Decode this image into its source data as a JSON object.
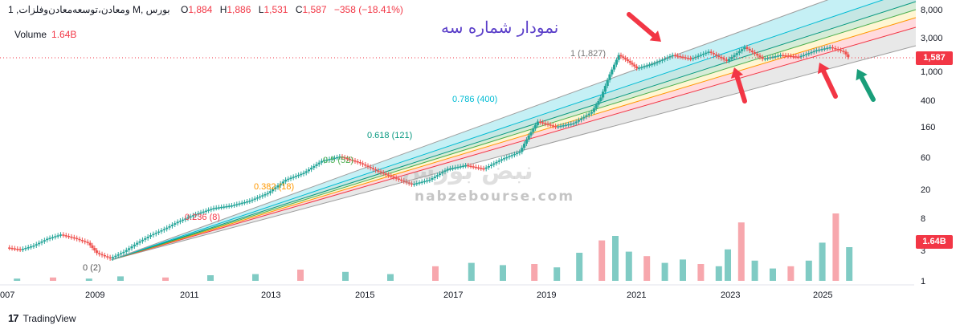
{
  "header": {
    "symbol": "1 ,ومعادن،توسعه‌معادن‌وفلزات M, بورس",
    "open_label": "O",
    "open": "1,884",
    "high_label": "H",
    "high": "1,886",
    "low_label": "L",
    "low": "1,531",
    "close_label": "C",
    "close": "1,587",
    "change": "−358 (−18.41%)"
  },
  "volume": {
    "label": "Volume",
    "value": "1.64B"
  },
  "title_fa": "نمودار شماره سه",
  "watermark": {
    "main": "نبض بورس",
    "url": "nabzebourse.com"
  },
  "badges": {
    "price": "1,587",
    "volume": "1.64B"
  },
  "footer": {
    "brand": "TradingView",
    "logo": "17"
  },
  "colors": {
    "up": "#26a69a",
    "down": "#ef5350",
    "fan_top": "#d8d8d8",
    "fan_cyan": "#b2ebf2",
    "fan_teal": "#b2dfdb",
    "fan_green": "#c8e6c9",
    "fan_yellow": "#fff3c4",
    "fan_red": "#ffcdd2",
    "fan_gray": "#e0e0e0",
    "arrow_red": "#f23645",
    "arrow_green": "#1a9e7a"
  },
  "chart_data": {
    "type": "candlestick-with-fib-fan",
    "y_scale": "log",
    "x_ticks": [
      "007",
      "2009",
      "2011",
      "2013",
      "2015",
      "2017",
      "2019",
      "2021",
      "2023",
      "2025"
    ],
    "y_ticks": [
      "8,000",
      "3,000",
      "1,000",
      "400",
      "160",
      "60",
      "20",
      "8",
      "3",
      "1"
    ],
    "last_price": 1587,
    "fib_levels": [
      {
        "label": "0 (2)",
        "value": 2
      },
      {
        "label": "0.236 (8)",
        "value": 8
      },
      {
        "label": "0.382 (18)",
        "value": 18
      },
      {
        "label": "0.5 (52)",
        "value": 52
      },
      {
        "label": "0.618 (121)",
        "value": 121
      },
      {
        "label": "0.786 (400)",
        "value": 400
      },
      {
        "label": "1 (1,827)",
        "value": 1827
      }
    ],
    "price_path": [
      [
        2007.0,
        3
      ],
      [
        2007.3,
        2.8
      ],
      [
        2007.6,
        3.2
      ],
      [
        2007.9,
        4
      ],
      [
        2008.2,
        4.6
      ],
      [
        2008.5,
        4.1
      ],
      [
        2008.8,
        3.5
      ],
      [
        2009.0,
        2.5
      ],
      [
        2009.3,
        2.1
      ],
      [
        2009.6,
        2.6
      ],
      [
        2009.9,
        3.5
      ],
      [
        2010.2,
        4.5
      ],
      [
        2010.5,
        5.5
      ],
      [
        2010.8,
        7
      ],
      [
        2011.2,
        9
      ],
      [
        2011.6,
        11
      ],
      [
        2012.0,
        12
      ],
      [
        2012.4,
        14
      ],
      [
        2012.8,
        18
      ],
      [
        2013.2,
        28
      ],
      [
        2013.6,
        35
      ],
      [
        2014.0,
        52
      ],
      [
        2014.4,
        60
      ],
      [
        2014.8,
        50
      ],
      [
        2015.2,
        38
      ],
      [
        2015.6,
        30
      ],
      [
        2016.0,
        24
      ],
      [
        2016.4,
        28
      ],
      [
        2016.8,
        40
      ],
      [
        2017.2,
        45
      ],
      [
        2017.6,
        40
      ],
      [
        2018.0,
        55
      ],
      [
        2018.4,
        70
      ],
      [
        2018.6,
        120
      ],
      [
        2018.8,
        190
      ],
      [
        2019.2,
        160
      ],
      [
        2019.6,
        180
      ],
      [
        2020.0,
        260
      ],
      [
        2020.2,
        420
      ],
      [
        2020.4,
        900
      ],
      [
        2020.6,
        1700
      ],
      [
        2020.8,
        1400
      ],
      [
        2021.0,
        1100
      ],
      [
        2021.4,
        1300
      ],
      [
        2021.8,
        1700
      ],
      [
        2022.2,
        1500
      ],
      [
        2022.6,
        1900
      ],
      [
        2023.0,
        1400
      ],
      [
        2023.4,
        2200
      ],
      [
        2023.8,
        1500
      ],
      [
        2024.2,
        1700
      ],
      [
        2024.6,
        1600
      ],
      [
        2025.0,
        2000
      ],
      [
        2025.3,
        2200
      ],
      [
        2025.6,
        1900
      ],
      [
        2025.7,
        1587
      ]
    ],
    "volume_bars": [
      [
        2007.2,
        0.2
      ],
      [
        2008.0,
        0.3
      ],
      [
        2008.8,
        0.2
      ],
      [
        2009.5,
        0.4
      ],
      [
        2010.5,
        0.3
      ],
      [
        2011.5,
        0.5
      ],
      [
        2012.5,
        0.6
      ],
      [
        2013.5,
        1.0
      ],
      [
        2014.5,
        0.8
      ],
      [
        2015.5,
        0.6
      ],
      [
        2016.5,
        1.3
      ],
      [
        2017.3,
        1.6
      ],
      [
        2018.0,
        1.4
      ],
      [
        2018.7,
        1.5
      ],
      [
        2019.2,
        1.2
      ],
      [
        2019.7,
        2.5
      ],
      [
        2020.2,
        3.6
      ],
      [
        2020.5,
        4.0
      ],
      [
        2020.8,
        2.6
      ],
      [
        2021.2,
        2.2
      ],
      [
        2021.6,
        1.6
      ],
      [
        2022.0,
        1.9
      ],
      [
        2022.4,
        1.5
      ],
      [
        2022.8,
        1.3
      ],
      [
        2023.0,
        2.8
      ],
      [
        2023.3,
        5.2
      ],
      [
        2023.6,
        1.8
      ],
      [
        2024.0,
        1.1
      ],
      [
        2024.4,
        1.3
      ],
      [
        2024.8,
        1.8
      ],
      [
        2025.1,
        3.4
      ],
      [
        2025.4,
        6.0
      ],
      [
        2025.7,
        3.0
      ]
    ]
  }
}
